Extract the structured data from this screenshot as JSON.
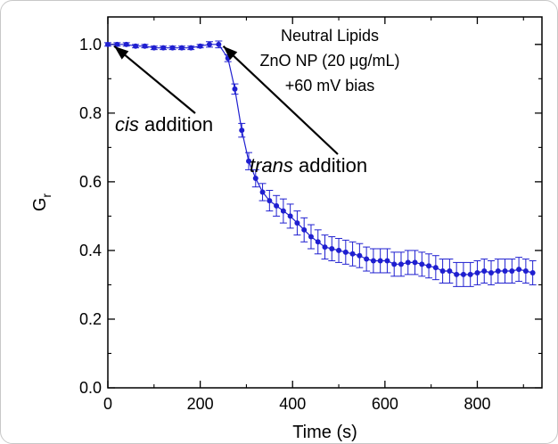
{
  "chart_data": {
    "type": "line",
    "xlabel": "Time (s)",
    "ylabel": "G",
    "ylabel_subscript": "r",
    "xlim": [
      0,
      940
    ],
    "ylim": [
      0.0,
      1.08
    ],
    "x_ticks": [
      0,
      200,
      400,
      600,
      800
    ],
    "x_tick_labels": [
      "0",
      "200",
      "400",
      "600",
      "800"
    ],
    "y_ticks": [
      0.0,
      0.2,
      0.4,
      0.6,
      0.8,
      1.0
    ],
    "y_tick_labels": [
      "0.0",
      "0.2",
      "0.4",
      "0.6",
      "0.8",
      "1.0"
    ],
    "grid": false,
    "color": "#1f1fd0",
    "title_lines": [
      "Neutral Lipids",
      "ZnO NP (20 μg/mL)",
      "+60 mV bias"
    ],
    "annotations": [
      {
        "italic": "cis",
        "rest": " addition",
        "target_x": 10,
        "target_y": 1.0
      },
      {
        "italic": "trans",
        "rest": " addition",
        "target_x": 250,
        "target_y": 1.0
      }
    ],
    "series": [
      {
        "x": [
          0,
          20,
          40,
          60,
          80,
          100,
          120,
          140,
          160,
          180,
          200,
          220,
          240,
          260,
          275,
          290,
          305,
          320,
          335,
          350,
          365,
          380,
          395,
          410,
          425,
          440,
          455,
          470,
          485,
          500,
          515,
          530,
          545,
          560,
          575,
          590,
          605,
          620,
          635,
          650,
          665,
          680,
          695,
          710,
          725,
          740,
          755,
          770,
          785,
          800,
          815,
          830,
          845,
          860,
          875,
          890,
          905,
          920
        ],
        "y": [
          1.0,
          1.0,
          1.0,
          0.995,
          0.995,
          0.99,
          0.99,
          0.99,
          0.99,
          0.99,
          0.995,
          1.0,
          1.0,
          0.96,
          0.87,
          0.75,
          0.66,
          0.61,
          0.57,
          0.545,
          0.53,
          0.515,
          0.5,
          0.48,
          0.46,
          0.44,
          0.425,
          0.41,
          0.405,
          0.4,
          0.395,
          0.39,
          0.385,
          0.375,
          0.37,
          0.37,
          0.37,
          0.36,
          0.36,
          0.365,
          0.365,
          0.36,
          0.355,
          0.35,
          0.34,
          0.34,
          0.33,
          0.33,
          0.33,
          0.335,
          0.34,
          0.335,
          0.34,
          0.34,
          0.34,
          0.345,
          0.34,
          0.335
        ],
        "err": [
          0.005,
          0.005,
          0.005,
          0.005,
          0.005,
          0.005,
          0.005,
          0.005,
          0.005,
          0.005,
          0.005,
          0.008,
          0.01,
          0.01,
          0.015,
          0.02,
          0.025,
          0.025,
          0.025,
          0.03,
          0.03,
          0.035,
          0.035,
          0.035,
          0.035,
          0.035,
          0.035,
          0.035,
          0.035,
          0.035,
          0.035,
          0.035,
          0.035,
          0.035,
          0.035,
          0.035,
          0.035,
          0.035,
          0.035,
          0.035,
          0.035,
          0.035,
          0.035,
          0.035,
          0.035,
          0.035,
          0.035,
          0.035,
          0.035,
          0.035,
          0.035,
          0.035,
          0.035,
          0.035,
          0.035,
          0.035,
          0.035,
          0.035
        ]
      }
    ]
  }
}
